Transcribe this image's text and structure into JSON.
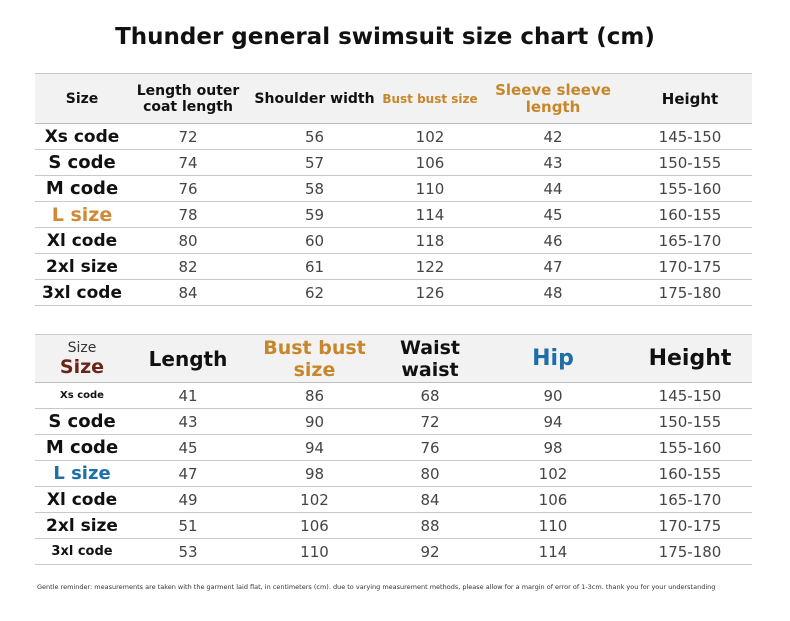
{
  "title": "Thunder general swimsuit size chart (cm)",
  "table1": {
    "headers": {
      "size": "Size",
      "length": "Length outer coat length",
      "shoulder": "Shoulder width",
      "bust": "Bust bust size",
      "sleeve": "Sleeve sleeve length",
      "height": "Height"
    },
    "rows": [
      {
        "size": "Xs code",
        "length": "72",
        "shoulder": "56",
        "bust": "102",
        "sleeve": "42",
        "height": "145-150"
      },
      {
        "size": "S code",
        "length": "74",
        "shoulder": "57",
        "bust": "106",
        "sleeve": "43",
        "height": "150-155"
      },
      {
        "size": "M code",
        "length": "76",
        "shoulder": "58",
        "bust": "110",
        "sleeve": "44",
        "height": "155-160"
      },
      {
        "size": "L size",
        "length": "78",
        "shoulder": "59",
        "bust": "114",
        "sleeve": "45",
        "height": "160-155"
      },
      {
        "size": "Xl code",
        "length": "80",
        "shoulder": "60",
        "bust": "118",
        "sleeve": "46",
        "height": "165-170"
      },
      {
        "size": "2xl size",
        "length": "82",
        "shoulder": "61",
        "bust": "122",
        "sleeve": "47",
        "height": "170-175"
      },
      {
        "size": "3xl code",
        "length": "84",
        "shoulder": "62",
        "bust": "126",
        "sleeve": "48",
        "height": "175-180"
      }
    ]
  },
  "table2": {
    "headers": {
      "size_top": "Size",
      "size_bottom": "Size",
      "length": "Length",
      "bust": "Bust bust size",
      "waist": "Waist waist",
      "hip": "Hip",
      "height": "Height"
    },
    "rows": [
      {
        "size": "Xs code",
        "length": "41",
        "bust": "86",
        "waist": "68",
        "hip": "90",
        "height": "145-150"
      },
      {
        "size": "S code",
        "length": "43",
        "bust": "90",
        "waist": "72",
        "hip": "94",
        "height": "150-155"
      },
      {
        "size": "M code",
        "length": "45",
        "bust": "94",
        "waist": "76",
        "hip": "98",
        "height": "155-160"
      },
      {
        "size": "L size",
        "length": "47",
        "bust": "98",
        "waist": "80",
        "hip": "102",
        "height": "160-155"
      },
      {
        "size": "Xl code",
        "length": "49",
        "bust": "102",
        "waist": "84",
        "hip": "106",
        "height": "165-170"
      },
      {
        "size": "2xl size",
        "length": "51",
        "bust": "106",
        "waist": "88",
        "hip": "110",
        "height": "170-175"
      },
      {
        "size": "3xl code",
        "length": "53",
        "bust": "110",
        "waist": "92",
        "hip": "114",
        "height": "175-180"
      }
    ]
  },
  "note": "Gentle reminder: measurements are taken with the garment laid flat, in centimeters (cm). due to varying measurement methods, please allow for a margin of error of 1-3cm. thank you for your understanding",
  "colors": {
    "accent_orange": "#c8862a",
    "accent_blue": "#1e6fa8",
    "dark_red": "#6b2418"
  }
}
